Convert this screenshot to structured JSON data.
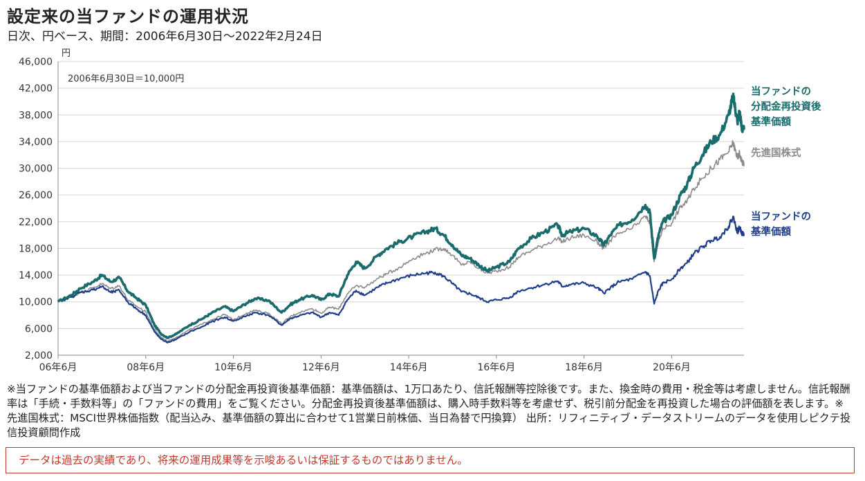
{
  "header": {
    "title": "設定来の当ファンドの運用状況",
    "subtitle": "日次、円ベース、期間：2006年6月30日～2022年2月24日"
  },
  "footer": {
    "note": "※当ファンドの基準価額および当ファンドの分配金再投資後基準価額：基準価額は、1万口あたり、信託報酬等控除後です。また、換金時の費用・税金等は考慮しません。信託報酬率は「手続・手数料等」の「ファンドの費用」をご覧ください。分配金再投資後基準価額は、購入時手数料等を考慮せず、税引前分配金を再投資した場合の評価額を表します。※先進国株式：MSCI世界株価指数（配当込み、基準価額の算出に合わせて1営業日前株価、当日為替で円換算） 出所：リフィニティブ・データストリームのデータを使用しピクテ投信投資顧問作成",
    "disclaimer": "データは過去の実績であり、将来の運用成果等を示唆あるいは保証するものではありません。"
  },
  "chart_data": {
    "type": "line",
    "title": "設定来の当ファンドの運用状況",
    "subtitle": "日次、円ベース、期間：2006年6月30日～2022年2月24日",
    "ylabel": "円",
    "annotation": "2006年6月30日＝10,000円",
    "ylim": [
      2000,
      46000
    ],
    "yticks": [
      2000,
      6000,
      10000,
      14000,
      18000,
      22000,
      26000,
      30000,
      34000,
      38000,
      42000,
      46000
    ],
    "ytick_labels": [
      "2,000",
      "6,000",
      "10,000",
      "14,000",
      "18,000",
      "22,000",
      "26,000",
      "30,000",
      "34,000",
      "38,000",
      "42,000",
      "46,000"
    ],
    "xlim": [
      2006.5,
      2022.15
    ],
    "xticks": [
      2006.5,
      2008.5,
      2010.5,
      2012.5,
      2014.5,
      2016.5,
      2018.5,
      2020.5
    ],
    "xtick_labels": [
      "06年6月",
      "08年6月",
      "10年6月",
      "12年6月",
      "14年6月",
      "16年6月",
      "18年6月",
      "20年6月"
    ],
    "grid": true,
    "series": [
      {
        "name": "当ファンドの分配金再投資後基準価額",
        "label_lines": [
          "当ファンドの",
          "分配金再投資後",
          "基準価額"
        ],
        "color": "#1a6b6b",
        "width": 3.6,
        "x": [
          2006.5,
          2006.8,
          2007.0,
          2007.3,
          2007.5,
          2007.7,
          2007.9,
          2008.1,
          2008.3,
          2008.5,
          2008.7,
          2008.85,
          2009.0,
          2009.2,
          2009.5,
          2009.8,
          2010.0,
          2010.3,
          2010.5,
          2010.8,
          2011.0,
          2011.3,
          2011.6,
          2011.8,
          2012.0,
          2012.3,
          2012.5,
          2012.7,
          2012.9,
          2013.1,
          2013.3,
          2013.5,
          2013.8,
          2014.0,
          2014.3,
          2014.6,
          2014.9,
          2015.1,
          2015.3,
          2015.5,
          2015.7,
          2015.9,
          2016.1,
          2016.3,
          2016.5,
          2016.8,
          2017.0,
          2017.3,
          2017.6,
          2017.9,
          2018.0,
          2018.2,
          2018.5,
          2018.8,
          2018.95,
          2019.1,
          2019.3,
          2019.6,
          2019.9,
          2020.0,
          2020.1,
          2020.2,
          2020.3,
          2020.5,
          2020.7,
          2020.85,
          2021.0,
          2021.2,
          2021.4,
          2021.6,
          2021.8,
          2021.9,
          2021.95,
          2022.0,
          2022.05,
          2022.1,
          2022.15
        ],
        "y": [
          10000,
          11000,
          12000,
          13000,
          14000,
          13000,
          13600,
          11500,
          10500,
          9500,
          6500,
          5200,
          4600,
          5200,
          6500,
          7500,
          8300,
          9300,
          8600,
          9800,
          10500,
          10200,
          8400,
          9600,
          10300,
          11000,
          10300,
          11200,
          10800,
          14000,
          16000,
          15000,
          17000,
          18000,
          19000,
          19800,
          20500,
          21000,
          20000,
          18500,
          17000,
          16500,
          15500,
          14600,
          15200,
          16000,
          18000,
          19500,
          20500,
          21500,
          20000,
          20500,
          21000,
          19800,
          18500,
          20000,
          21500,
          22300,
          24500,
          23500,
          16500,
          20000,
          22000,
          23000,
          26000,
          27500,
          30000,
          32000,
          34000,
          35000,
          38000,
          40800,
          39000,
          37000,
          38500,
          36000,
          35800
        ]
      },
      {
        "name": "先進国株式",
        "label_lines": [
          "先進国株式"
        ],
        "color": "#8a8a8a",
        "width": 1.6,
        "x": [
          2006.5,
          2006.8,
          2007.0,
          2007.3,
          2007.5,
          2007.7,
          2007.9,
          2008.1,
          2008.3,
          2008.5,
          2008.7,
          2008.85,
          2009.0,
          2009.2,
          2009.5,
          2009.8,
          2010.0,
          2010.3,
          2010.5,
          2010.8,
          2011.0,
          2011.3,
          2011.6,
          2011.8,
          2012.0,
          2012.3,
          2012.5,
          2012.7,
          2012.9,
          2013.1,
          2013.3,
          2013.5,
          2013.8,
          2014.0,
          2014.3,
          2014.6,
          2014.9,
          2015.1,
          2015.3,
          2015.5,
          2015.7,
          2015.9,
          2016.1,
          2016.3,
          2016.5,
          2016.8,
          2017.0,
          2017.3,
          2017.6,
          2017.9,
          2018.0,
          2018.2,
          2018.5,
          2018.8,
          2018.95,
          2019.1,
          2019.3,
          2019.6,
          2019.9,
          2020.0,
          2020.1,
          2020.2,
          2020.3,
          2020.5,
          2020.7,
          2020.85,
          2021.0,
          2021.2,
          2021.4,
          2021.6,
          2021.8,
          2021.9,
          2021.95,
          2022.0,
          2022.05,
          2022.1,
          2022.15
        ],
        "y": [
          10000,
          10700,
          11400,
          12100,
          12700,
          12000,
          12400,
          10200,
          9300,
          8500,
          5800,
          4700,
          4100,
          4700,
          5800,
          6700,
          7300,
          8100,
          7300,
          8300,
          8700,
          8300,
          6700,
          7800,
          8400,
          9000,
          8300,
          9200,
          8900,
          11200,
          12400,
          12200,
          13500,
          14200,
          15200,
          16500,
          17300,
          17800,
          18000,
          17000,
          15500,
          16000,
          15000,
          14300,
          14600,
          15200,
          16700,
          17700,
          18600,
          19500,
          19000,
          19600,
          20000,
          19000,
          18000,
          19200,
          20200,
          21000,
          22800,
          22000,
          16000,
          19000,
          21000,
          21800,
          24200,
          25000,
          27000,
          28500,
          30000,
          31300,
          32500,
          33800,
          32800,
          31500,
          32300,
          31000,
          30800
        ]
      },
      {
        "name": "当ファンドの基準価額",
        "label_lines": [
          "当ファンドの",
          "基準価額"
        ],
        "color": "#1f3d8a",
        "width": 2.2,
        "x": [
          2006.5,
          2006.8,
          2007.0,
          2007.3,
          2007.5,
          2007.7,
          2007.9,
          2008.1,
          2008.3,
          2008.5,
          2008.7,
          2008.85,
          2009.0,
          2009.2,
          2009.5,
          2009.8,
          2010.0,
          2010.3,
          2010.5,
          2010.8,
          2011.0,
          2011.3,
          2011.6,
          2011.8,
          2012.0,
          2012.3,
          2012.5,
          2012.7,
          2012.9,
          2013.1,
          2013.3,
          2013.5,
          2013.8,
          2014.0,
          2014.3,
          2014.6,
          2014.9,
          2015.1,
          2015.3,
          2015.5,
          2015.7,
          2015.9,
          2016.1,
          2016.3,
          2016.5,
          2016.8,
          2017.0,
          2017.3,
          2017.6,
          2017.9,
          2018.0,
          2018.2,
          2018.5,
          2018.8,
          2018.95,
          2019.1,
          2019.3,
          2019.6,
          2019.9,
          2020.0,
          2020.1,
          2020.2,
          2020.3,
          2020.5,
          2020.7,
          2020.85,
          2021.0,
          2021.2,
          2021.4,
          2021.6,
          2021.8,
          2021.9,
          2021.95,
          2022.0,
          2022.05,
          2022.1,
          2022.15
        ],
        "y": [
          10000,
          10700,
          11400,
          11800,
          12300,
          11400,
          11700,
          9900,
          8900,
          8000,
          5500,
          4400,
          3900,
          4400,
          5500,
          6300,
          7000,
          7700,
          7100,
          7900,
          8400,
          8000,
          6500,
          7500,
          7900,
          8400,
          7700,
          8400,
          8000,
          10300,
          11700,
          11000,
          12200,
          12800,
          13500,
          14000,
          14300,
          14400,
          13800,
          12700,
          11500,
          11200,
          10600,
          10000,
          10300,
          10600,
          11600,
          12100,
          12600,
          13100,
          12300,
          12600,
          12800,
          12100,
          11300,
          12100,
          13000,
          13400,
          14500,
          13900,
          9700,
          11700,
          12800,
          13400,
          15000,
          15800,
          17200,
          18200,
          19200,
          19700,
          21300,
          22800,
          21600,
          20400,
          21200,
          20300,
          20100
        ]
      }
    ]
  }
}
